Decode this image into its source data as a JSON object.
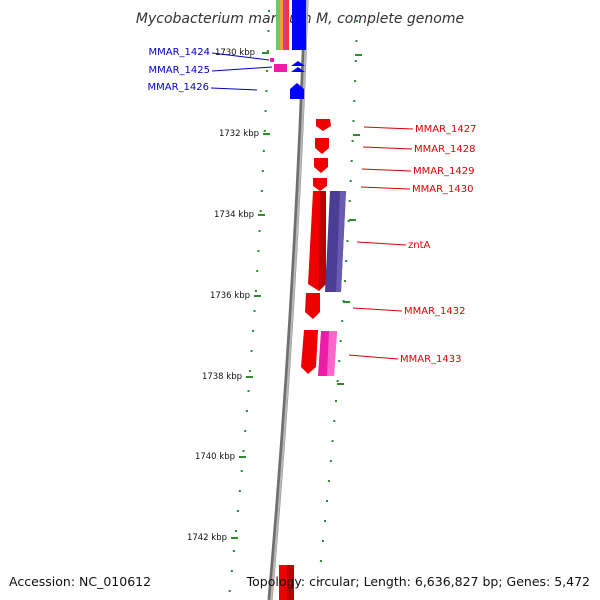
{
  "title": "Mycobacterium marinum M, complete genome",
  "accession": "Accession: NC_010612",
  "topology": "Topology: circular; Length: 6,636,827 bp; Genes: 5,472",
  "colors": {
    "backbone": "#8c8c8c",
    "tick": "#2e8b2e",
    "left_labels": "#0000cc",
    "right_labels": "#dd0000",
    "gene_red": "#ee0000",
    "gene_blue": "#0000ff",
    "gene_purple": "#4b3c96",
    "gene_pink": "#ee1aa8"
  },
  "ticks": [
    {
      "label": "1730 kbp"
    },
    {
      "label": "1732 kbp"
    },
    {
      "label": "1734 kbp"
    },
    {
      "label": "1736 kbp"
    },
    {
      "label": "1738 kbp"
    },
    {
      "label": "1740 kbp"
    },
    {
      "label": "1742 kbp"
    }
  ],
  "genes_left": [
    {
      "name": "MMAR_1424"
    },
    {
      "name": "MMAR_1425"
    },
    {
      "name": "MMAR_1426"
    }
  ],
  "genes_right": [
    {
      "name": "MMAR_1427"
    },
    {
      "name": "MMAR_1428"
    },
    {
      "name": "MMAR_1429"
    },
    {
      "name": "MMAR_1430"
    },
    {
      "name": "zntA"
    },
    {
      "name": "MMAR_1432"
    },
    {
      "name": "MMAR_1433"
    }
  ]
}
